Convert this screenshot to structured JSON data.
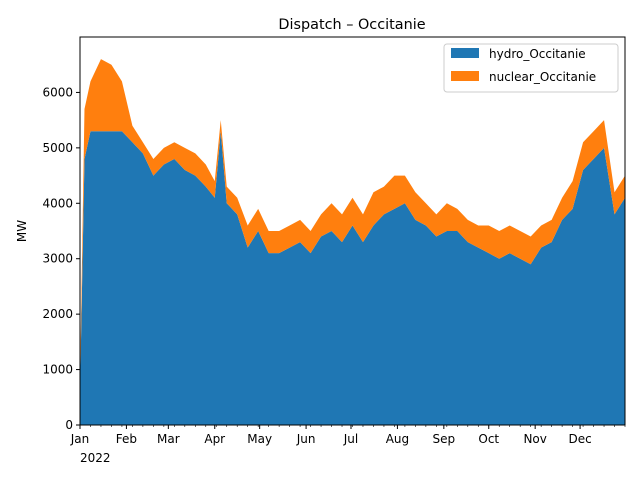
{
  "chart_data": {
    "type": "area",
    "stacked": true,
    "title": "Dispatch – Occitanie",
    "xlabel": "",
    "ylabel": "MW",
    "ylim": [
      0,
      7000
    ],
    "xlim": [
      "2022-01-01",
      "2022-12-31"
    ],
    "yticks": [
      0,
      1000,
      2000,
      3000,
      4000,
      5000,
      6000
    ],
    "xticks": [
      {
        "date": "2022-01-01",
        "label": "Jan"
      },
      {
        "date": "2022-02-01",
        "label": "Feb"
      },
      {
        "date": "2022-03-01",
        "label": "Mar"
      },
      {
        "date": "2022-04-01",
        "label": "Apr"
      },
      {
        "date": "2022-05-01",
        "label": "May"
      },
      {
        "date": "2022-06-01",
        "label": "Jun"
      },
      {
        "date": "2022-07-01",
        "label": "Jul"
      },
      {
        "date": "2022-08-01",
        "label": "Aug"
      },
      {
        "date": "2022-09-01",
        "label": "Sep"
      },
      {
        "date": "2022-10-01",
        "label": "Oct"
      },
      {
        "date": "2022-11-01",
        "label": "Nov"
      },
      {
        "date": "2022-12-01",
        "label": "Dec"
      }
    ],
    "year_label": "2022",
    "grid": false,
    "legend_position": "top-right",
    "x": [
      "2022-01-01",
      "2022-01-04",
      "2022-01-08",
      "2022-01-15",
      "2022-01-22",
      "2022-01-29",
      "2022-02-05",
      "2022-02-12",
      "2022-02-19",
      "2022-02-26",
      "2022-03-05",
      "2022-03-12",
      "2022-03-19",
      "2022-03-26",
      "2022-04-01",
      "2022-04-05",
      "2022-04-09",
      "2022-04-16",
      "2022-04-23",
      "2022-04-30",
      "2022-05-07",
      "2022-05-14",
      "2022-05-21",
      "2022-05-28",
      "2022-06-04",
      "2022-06-11",
      "2022-06-18",
      "2022-06-25",
      "2022-07-02",
      "2022-07-09",
      "2022-07-16",
      "2022-07-23",
      "2022-07-30",
      "2022-08-06",
      "2022-08-13",
      "2022-08-20",
      "2022-08-27",
      "2022-09-03",
      "2022-09-10",
      "2022-09-17",
      "2022-09-24",
      "2022-10-01",
      "2022-10-08",
      "2022-10-15",
      "2022-10-22",
      "2022-10-29",
      "2022-11-05",
      "2022-11-12",
      "2022-11-19",
      "2022-11-26",
      "2022-12-03",
      "2022-12-10",
      "2022-12-17",
      "2022-12-24",
      "2022-12-31"
    ],
    "series": [
      {
        "name": "hydro_Occitanie",
        "color": "#1f77b4",
        "values": [
          600,
          4800,
          5300,
          5300,
          5300,
          5300,
          5100,
          4900,
          4500,
          4700,
          4800,
          4600,
          4500,
          4300,
          4100,
          5300,
          4000,
          3800,
          3200,
          3500,
          3100,
          3100,
          3200,
          3300,
          3100,
          3400,
          3500,
          3300,
          3600,
          3300,
          3600,
          3800,
          3900,
          4000,
          3700,
          3600,
          3400,
          3500,
          3500,
          3300,
          3200,
          3100,
          3000,
          3100,
          3000,
          2900,
          3200,
          3300,
          3700,
          3900,
          4600,
          4800,
          5000,
          3800,
          4100
        ]
      },
      {
        "name": "nuclear_Occitanie",
        "color": "#ff7f0e",
        "values": [
          200,
          900,
          900,
          1300,
          1200,
          900,
          300,
          200,
          300,
          300,
          300,
          400,
          400,
          400,
          300,
          200,
          300,
          300,
          400,
          400,
          400,
          400,
          400,
          400,
          400,
          400,
          500,
          500,
          500,
          500,
          600,
          500,
          600,
          500,
          500,
          400,
          400,
          500,
          400,
          400,
          400,
          500,
          500,
          500,
          500,
          500,
          400,
          400,
          400,
          500,
          500,
          500,
          500,
          400,
          400
        ]
      }
    ]
  }
}
